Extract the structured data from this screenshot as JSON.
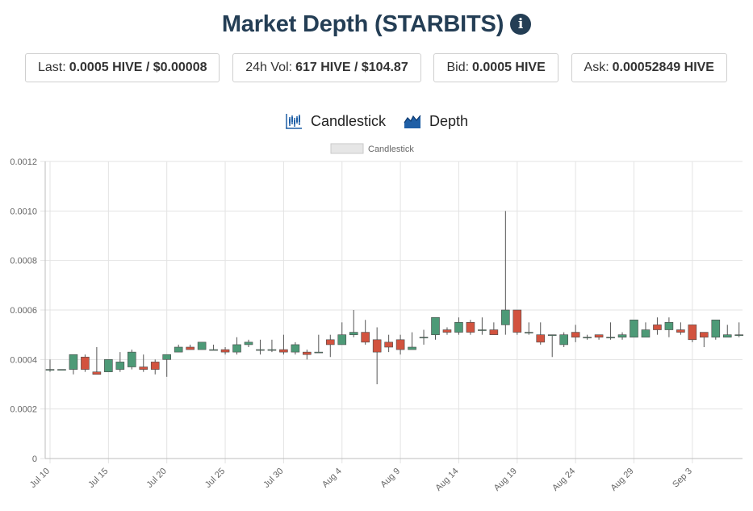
{
  "header": {
    "title": "Market Depth (STARBITS)",
    "info_icon": "info-circle-icon"
  },
  "stats": [
    {
      "label": "Last:",
      "value": "0.0005 HIVE / $0.00008"
    },
    {
      "label": "24h Vol:",
      "value": "617 HIVE / $104.87"
    },
    {
      "label": "Bid:",
      "value": "0.0005 HIVE"
    },
    {
      "label": "Ask:",
      "value": "0.00052849 HIVE"
    }
  ],
  "tabs": [
    {
      "label": "Candlestick",
      "icon": "candlestick-icon"
    },
    {
      "label": "Depth",
      "icon": "depth-chart-icon"
    }
  ],
  "colors": {
    "up": "#4d9a77",
    "down": "#d2533f",
    "title": "#243e55",
    "tab_icon": "#1f5fa6"
  },
  "chart_data": {
    "type": "candlestick",
    "legend": [
      "Candlestick"
    ],
    "legend_position": "top",
    "grid": true,
    "ylim": [
      0,
      0.0012
    ],
    "y_ticks": [
      "0",
      "0.0002",
      "0.0004",
      "0.0006",
      "0.0008",
      "0.0010",
      "0.0012"
    ],
    "x_ticks": [
      "Jul 10",
      "Jul 15",
      "Jul 20",
      "Jul 25",
      "Jul 30",
      "Aug 4",
      "Aug 9",
      "Aug 14",
      "Aug 19",
      "Aug 24",
      "Aug 29",
      "Sep 3"
    ],
    "dates": [
      "Jul 10",
      "Jul 11",
      "Jul 12",
      "Jul 13",
      "Jul 14",
      "Jul 15",
      "Jul 16",
      "Jul 17",
      "Jul 18",
      "Jul 19",
      "Jul 20",
      "Jul 21",
      "Jul 22",
      "Jul 23",
      "Jul 24",
      "Jul 25",
      "Jul 26",
      "Jul 27",
      "Jul 28",
      "Jul 29",
      "Jul 30",
      "Jul 31",
      "Aug 1",
      "Aug 2",
      "Aug 3",
      "Aug 4",
      "Aug 5",
      "Aug 6",
      "Aug 7",
      "Aug 8",
      "Aug 9",
      "Aug 10",
      "Aug 11",
      "Aug 12",
      "Aug 13",
      "Aug 14",
      "Aug 15",
      "Aug 16",
      "Aug 17",
      "Aug 18",
      "Aug 19",
      "Aug 20",
      "Aug 21",
      "Aug 22",
      "Aug 23",
      "Aug 24",
      "Aug 25",
      "Aug 26",
      "Aug 27",
      "Aug 28",
      "Aug 29",
      "Aug 30",
      "Aug 31",
      "Sep 1",
      "Sep 2",
      "Sep 3",
      "Sep 4",
      "Sep 5",
      "Sep 6",
      "Sep 7"
    ],
    "open": [
      0.00036,
      0.00036,
      0.00036,
      0.00041,
      0.00035,
      0.00035,
      0.00036,
      0.00037,
      0.00037,
      0.00039,
      0.0004,
      0.00043,
      0.00045,
      0.00044,
      0.00044,
      0.00044,
      0.00043,
      0.00046,
      0.00044,
      0.00044,
      0.00044,
      0.00043,
      0.00043,
      0.00043,
      0.00048,
      0.00046,
      0.0005,
      0.00051,
      0.00048,
      0.00047,
      0.00048,
      0.00044,
      0.00049,
      0.0005,
      0.00052,
      0.00051,
      0.00055,
      0.00052,
      0.00052,
      0.00054,
      0.0006,
      0.00051,
      0.0005,
      0.0005,
      0.00046,
      0.00051,
      0.00049,
      0.0005,
      0.00049,
      0.00049,
      0.00049,
      0.00049,
      0.00054,
      0.00052,
      0.00052,
      0.00054,
      0.00051,
      0.00049,
      0.00049,
      0.0005
    ],
    "close": [
      0.00036,
      0.00036,
      0.00042,
      0.00036,
      0.00034,
      0.0004,
      0.00039,
      0.00043,
      0.00036,
      0.00036,
      0.00042,
      0.00045,
      0.00044,
      0.00047,
      0.00044,
      0.00043,
      0.00046,
      0.00047,
      0.00044,
      0.00044,
      0.00043,
      0.00046,
      0.00042,
      0.00043,
      0.00046,
      0.0005,
      0.00051,
      0.00047,
      0.00043,
      0.00045,
      0.00044,
      0.00045,
      0.00049,
      0.00057,
      0.00051,
      0.00055,
      0.00051,
      0.00052,
      0.0005,
      0.0006,
      0.00051,
      0.00051,
      0.00047,
      0.0005,
      0.0005,
      0.00049,
      0.00049,
      0.00049,
      0.00049,
      0.0005,
      0.00056,
      0.00052,
      0.00052,
      0.00055,
      0.00051,
      0.00048,
      0.00049,
      0.00056,
      0.0005,
      0.0005
    ],
    "high": [
      0.0004,
      0.00036,
      0.00042,
      0.00042,
      0.00045,
      0.0004,
      0.00043,
      0.00044,
      0.00042,
      0.0004,
      0.00042,
      0.00046,
      0.00046,
      0.00047,
      0.00046,
      0.00045,
      0.00049,
      0.00048,
      0.00048,
      0.00048,
      0.0005,
      0.00047,
      0.00044,
      0.0005,
      0.0005,
      0.00055,
      0.0006,
      0.00056,
      0.00053,
      0.0005,
      0.0005,
      0.00051,
      0.00052,
      0.00057,
      0.00053,
      0.00057,
      0.00056,
      0.00057,
      0.00055,
      0.001,
      0.0006,
      0.00055,
      0.00055,
      0.0005,
      0.00051,
      0.00054,
      0.0005,
      0.0005,
      0.00055,
      0.00051,
      0.00056,
      0.00055,
      0.00057,
      0.00057,
      0.00055,
      0.00054,
      0.00051,
      0.00056,
      0.00054,
      0.00055
    ],
    "low": [
      0.00035,
      0.00036,
      0.00034,
      0.00035,
      0.00034,
      0.00035,
      0.00035,
      0.00036,
      0.00035,
      0.00034,
      0.00033,
      0.00043,
      0.00044,
      0.00044,
      0.00044,
      0.00042,
      0.00042,
      0.00045,
      0.00042,
      0.00043,
      0.00042,
      0.00042,
      0.0004,
      0.00043,
      0.00041,
      0.00046,
      0.00049,
      0.00046,
      0.0003,
      0.00043,
      0.00042,
      0.00044,
      0.00046,
      0.00048,
      0.0005,
      0.0005,
      0.0005,
      0.0005,
      0.0005,
      0.0005,
      0.0005,
      0.0005,
      0.00046,
      0.00041,
      0.00045,
      0.00047,
      0.00048,
      0.00048,
      0.00048,
      0.00048,
      0.00049,
      0.00049,
      0.0005,
      0.00049,
      0.0005,
      0.00047,
      0.00045,
      0.00048,
      0.00049,
      0.00049
    ]
  }
}
